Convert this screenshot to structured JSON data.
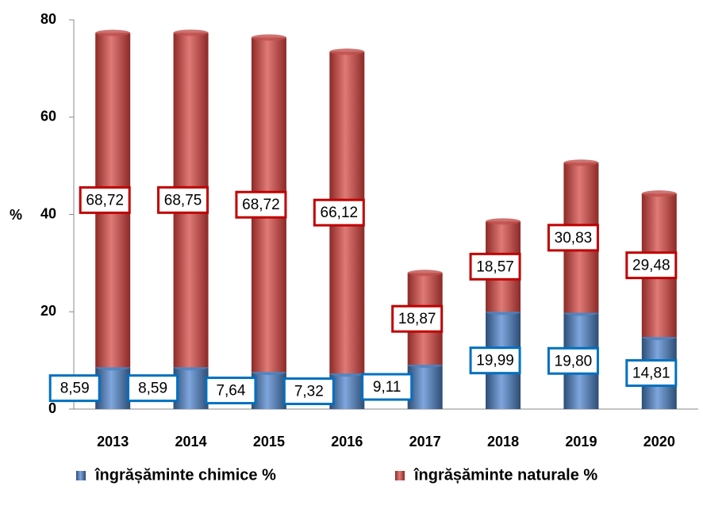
{
  "chart_data": {
    "type": "stacked_bar",
    "categories": [
      "2013",
      "2014",
      "2015",
      "2016",
      "2017",
      "2018",
      "2019",
      "2020"
    ],
    "series": [
      {
        "name": "îngrășăminte chimice %",
        "color": "#4f81bd",
        "label_border": "#0070c0",
        "values": [
          8.59,
          8.59,
          7.64,
          7.32,
          9.11,
          19.99,
          19.8,
          14.81
        ],
        "value_labels": [
          "8,59",
          "8,59",
          "7,64",
          "7,32",
          "9,11",
          "19,99",
          "19,80",
          "14,81"
        ]
      },
      {
        "name": "îngrășăminte naturale %",
        "color": "#c0504d",
        "label_border": "#c00000",
        "values": [
          68.72,
          68.75,
          68.72,
          66.12,
          18.87,
          18.57,
          30.83,
          29.48
        ],
        "value_labels": [
          "68,72",
          "68,75",
          "68,72",
          "66,12",
          "18,87",
          "18,57",
          "30,83",
          "29,48"
        ]
      }
    ],
    "ylabel": "%",
    "ylim": [
      0,
      80
    ],
    "yticks": [
      0,
      20,
      40,
      60,
      80
    ],
    "legend": "bottom"
  }
}
